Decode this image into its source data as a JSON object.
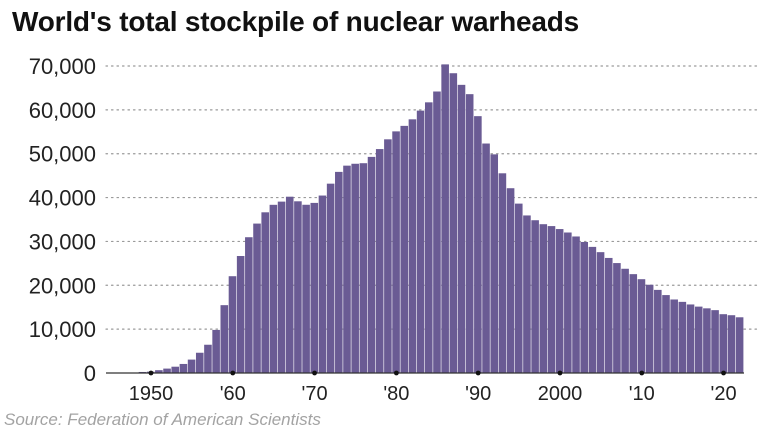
{
  "chart_data": {
    "type": "bar",
    "title": "World's total stockpile of nuclear warheads",
    "source": "Source: Federation of American Scientists",
    "bar_color": "#6a5b94",
    "grid": "horizontal dotted",
    "ylim": [
      0,
      70000
    ],
    "y_ticks": [
      0,
      10000,
      20000,
      30000,
      40000,
      50000,
      60000,
      70000
    ],
    "y_tick_labels": [
      "0",
      "10,000",
      "20,000",
      "30,000",
      "40,000",
      "50,000",
      "60,000",
      "70,000"
    ],
    "x_ticks": [
      1950,
      1960,
      1970,
      1980,
      1990,
      2000,
      2010,
      2020
    ],
    "x_tick_labels": [
      "1950",
      "'60",
      "'70",
      "'80",
      "'90",
      "2000",
      "'10",
      "'20"
    ],
    "x_range": [
      1945,
      2022
    ],
    "categories": [
      1945,
      1946,
      1947,
      1948,
      1949,
      1950,
      1951,
      1952,
      1953,
      1954,
      1955,
      1956,
      1957,
      1958,
      1959,
      1960,
      1961,
      1962,
      1963,
      1964,
      1965,
      1966,
      1967,
      1968,
      1969,
      1970,
      1971,
      1972,
      1973,
      1974,
      1975,
      1976,
      1977,
      1978,
      1979,
      1980,
      1981,
      1982,
      1983,
      1984,
      1985,
      1986,
      1987,
      1988,
      1989,
      1990,
      1991,
      1992,
      1993,
      1994,
      1995,
      1996,
      1997,
      1998,
      1999,
      2000,
      2001,
      2002,
      2003,
      2004,
      2005,
      2006,
      2007,
      2008,
      2009,
      2010,
      2011,
      2012,
      2013,
      2014,
      2015,
      2016,
      2017,
      2018,
      2019,
      2020,
      2021,
      2022
    ],
    "values": [
      6,
      11,
      32,
      110,
      235,
      304,
      640,
      1005,
      1436,
      2063,
      3057,
      4618,
      6444,
      9822,
      15468,
      22069,
      26675,
      30959,
      34069,
      36640,
      38348,
      39076,
      40198,
      39150,
      38360,
      38784,
      40462,
      43171,
      45856,
      47279,
      47709,
      47837,
      49277,
      51060,
      53283,
      55093,
      56349,
      57842,
      59827,
      61714,
      64185,
      70369,
      68352,
      65703,
      63580,
      58564,
      52323,
      49854,
      45536,
      42133,
      38622,
      35925,
      34835,
      33929,
      33497,
      32820,
      32036,
      31129,
      29875,
      28757,
      27554,
      26235,
      25066,
      23768,
      22541,
      21390,
      20125,
      18950,
      17767,
      16762,
      16219,
      15629,
      15135,
      14744,
      14332,
      13410,
      13175,
      12705
    ]
  }
}
